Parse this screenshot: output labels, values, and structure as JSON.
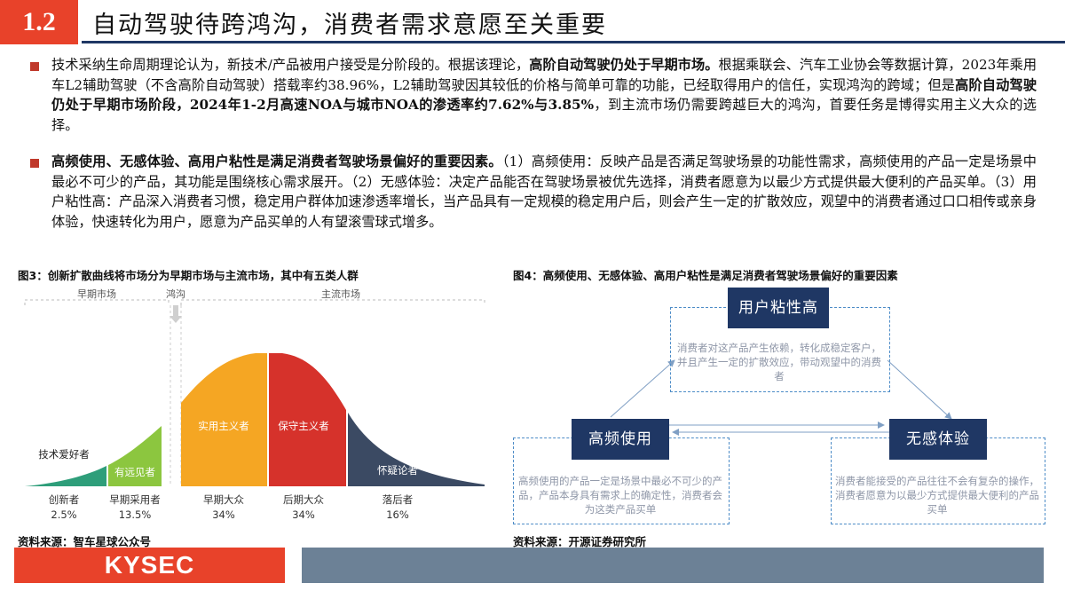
{
  "header": {
    "number": "1.2",
    "title": "自动驾驶待跨鸿沟，消费者需求意愿至关重要"
  },
  "paragraph1": {
    "s1": "技术采纳生命周期理论认为，新技术/产品被用户接受是分阶段的。根据该理论，",
    "b1": "高阶自动驾驶仍处于早期市场。",
    "s2": "根据乘联会、汽车工业协会等数据计算，2023年乘用车L2辅助驾驶（不含高阶自动驾驶）搭载率约38.96%，L2辅助驾驶因其较低的价格与简单可靠的功能，已经取得用户的信任，实现鸿沟的跨域；但是",
    "b2": "高阶自动驾驶仍处于早期市场阶段，2024年1-2月高速NOA与城市NOA的渗透率约7.62%与3.85%",
    "s3": "，到主流市场仍需要跨越巨大的鸿沟，首要任务是博得实用主义大众的选择。"
  },
  "paragraph2": {
    "b1": "高频使用、无感体验、高用户粘性是满足消费者驾驶场景偏好的重要因素。",
    "s1": "（1）高频使用：反映产品是否满足驾驶场景的功能性需求，高频使用的产品一定是场景中最必不可少的产品，其功能是围绕核心需求展开。（2）无感体验：决定产品能否在驾驶场景被优先选择，消费者愿意为以最少方式提供最大便利的产品买单。（3）用户粘性高：产品深入消费者习惯，稳定用户群体加速渗透率增长，当产品具有一定规模的稳定用户后，则会产生一定的扩散效应，观望中的消费者通过口口相传或亲身体验，快速转化为用户，愿意为产品买单的人有望滚雪球式增多。"
  },
  "figure3": {
    "caption": "图3：创新扩散曲线将市场分为早期市场与主流市场，其中有五类人群",
    "source": "资料来源：智车星球公众号",
    "labels": {
      "early": "早期市场",
      "chasm": "鸿沟",
      "main": "主流市场"
    },
    "segments": [
      {
        "name": "技术爱好者",
        "group": "创新者",
        "pct": "2.5%"
      },
      {
        "name": "有远见者",
        "group": "早期采用者",
        "pct": "13.5%"
      },
      {
        "name": "实用主义者",
        "group": "早期大众",
        "pct": "34%"
      },
      {
        "name": "保守主义者",
        "group": "后期大众",
        "pct": "34%"
      },
      {
        "name": "怀疑论者",
        "group": "落后者",
        "pct": "16%"
      }
    ]
  },
  "figure4": {
    "caption": "图4：高频使用、无感体验、高用户粘性是满足消费者驾驶场景偏好的重要因素",
    "source": "资料来源：开源证券研究所",
    "top": {
      "title": "用户粘性高",
      "desc": "消费者对这产品产生依赖，转化成稳定客户，并且产生一定的扩散效应，带动观望中的消费者"
    },
    "left": {
      "title": "高频使用",
      "desc": "高频使用的产品一定是场景中最必不可少的产品，产品本身具有需求上的确定性，消费者会为这类产品买单"
    },
    "right": {
      "title": "无感体验",
      "desc": "消费者能接受的产品往往不会有复杂的操作，消费者愿意为以最少方式提供最大便利的产品买单"
    }
  },
  "footer": {
    "logo": "KYSEC"
  },
  "colors": {
    "accent": "#e8422a",
    "navy": "#1f3764",
    "orange": "#f5a623",
    "red": "#d6322b",
    "slate": "#3b4a63",
    "green": "#2e9e7a"
  }
}
